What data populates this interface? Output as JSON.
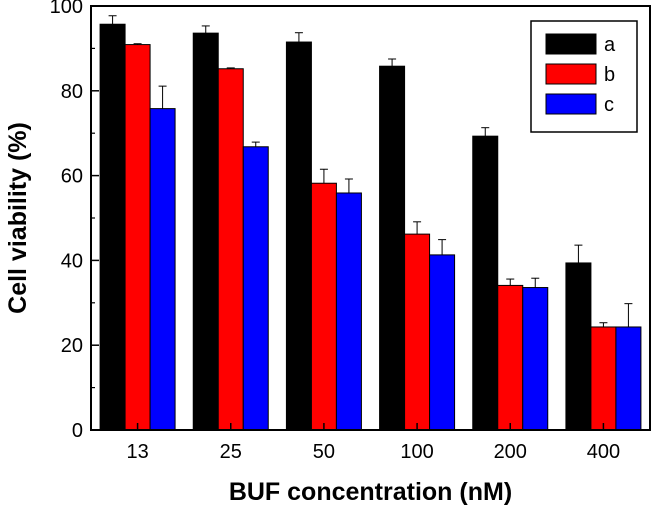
{
  "chart_data": {
    "type": "bar",
    "xlabel": "BUF concentration (nM)",
    "ylabel": "Cell viability (%)",
    "ylim": [
      0,
      100
    ],
    "yticks": [
      0,
      20,
      40,
      60,
      80,
      100
    ],
    "categories": [
      "13",
      "25",
      "50",
      "100",
      "200",
      "400"
    ],
    "series": [
      {
        "name": "a",
        "color": "#000000",
        "values": [
          95.7,
          93.6,
          91.5,
          85.8,
          69.3,
          39.4
        ],
        "errors": [
          2.0,
          1.7,
          2.2,
          1.7,
          2.0,
          4.2
        ]
      },
      {
        "name": "b",
        "color": "#ff0000",
        "values": [
          90.9,
          85.2,
          58.2,
          46.2,
          34.1,
          24.3
        ],
        "errors": [
          0.2,
          0.2,
          3.3,
          2.9,
          1.5,
          1.0
        ]
      },
      {
        "name": "c",
        "color": "#0000ff",
        "values": [
          75.8,
          66.8,
          55.9,
          41.3,
          33.6,
          24.3
        ],
        "errors": [
          5.3,
          1.1,
          3.3,
          3.6,
          2.2,
          5.5
        ]
      }
    ],
    "legend": "top-right",
    "grid": false
  }
}
